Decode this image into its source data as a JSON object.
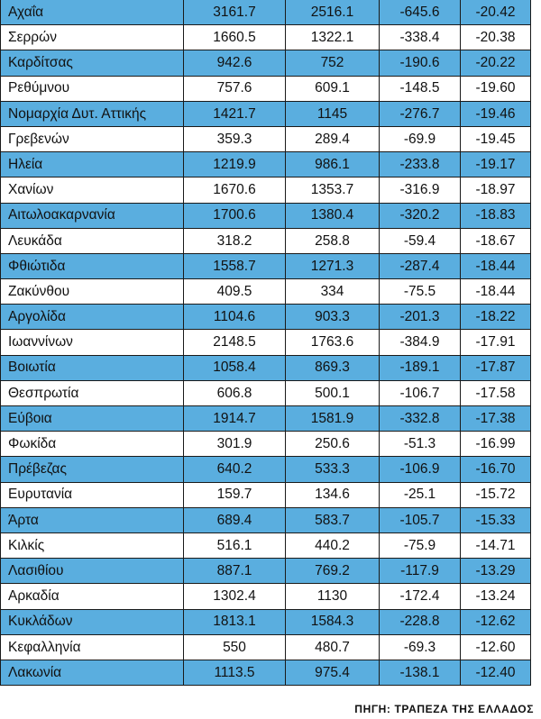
{
  "rows": [
    [
      "Αχαΐα",
      "3161.7",
      "2516.1",
      "-645.6",
      "-20.42"
    ],
    [
      "Σερρών",
      "1660.5",
      "1322.1",
      "-338.4",
      "-20.38"
    ],
    [
      "Καρδίτσας",
      "942.6",
      "752",
      "-190.6",
      "-20.22"
    ],
    [
      "Ρεθύμνου",
      "757.6",
      "609.1",
      "-148.5",
      "-19.60"
    ],
    [
      "Νομαρχία Δυτ. Αττικής",
      "1421.7",
      "1145",
      "-276.7",
      "-19.46"
    ],
    [
      "Γρεβενών",
      "359.3",
      "289.4",
      "-69.9",
      "-19.45"
    ],
    [
      "Ηλεία",
      "1219.9",
      "986.1",
      "-233.8",
      "-19.17"
    ],
    [
      "Χανίων",
      "1670.6",
      "1353.7",
      "-316.9",
      "-18.97"
    ],
    [
      "Αιτωλοακαρνανία",
      "1700.6",
      "1380.4",
      "-320.2",
      "-18.83"
    ],
    [
      "Λευκάδα",
      "318.2",
      "258.8",
      "-59.4",
      "-18.67"
    ],
    [
      "Φθιώτιδα",
      "1558.7",
      "1271.3",
      "-287.4",
      "-18.44"
    ],
    [
      "Ζακύνθου",
      "409.5",
      "334",
      "-75.5",
      "-18.44"
    ],
    [
      "Αργολίδα",
      "1104.6",
      "903.3",
      "-201.3",
      "-18.22"
    ],
    [
      "Ιωαννίνων",
      "2148.5",
      "1763.6",
      "-384.9",
      "-17.91"
    ],
    [
      "Βοιωτία",
      "1058.4",
      "869.3",
      "-189.1",
      "-17.87"
    ],
    [
      "Θεσπρωτία",
      "606.8",
      "500.1",
      "-106.7",
      "-17.58"
    ],
    [
      "Εύβοια",
      "1914.7",
      "1581.9",
      "-332.8",
      "-17.38"
    ],
    [
      "Φωκίδα",
      "301.9",
      "250.6",
      "-51.3",
      "-16.99"
    ],
    [
      "Πρέβεζας",
      "640.2",
      "533.3",
      "-106.9",
      "-16.70"
    ],
    [
      "Ευρυτανία",
      "159.7",
      "134.6",
      "-25.1",
      "-15.72"
    ],
    [
      "Άρτα",
      "689.4",
      "583.7",
      "-105.7",
      "-15.33"
    ],
    [
      "Κιλκίς",
      "516.1",
      "440.2",
      "-75.9",
      "-14.71"
    ],
    [
      "Λασιθίου",
      "887.1",
      "769.2",
      "-117.9",
      "-13.29"
    ],
    [
      "Αρκαδία",
      "1302.4",
      "1130",
      "-172.4",
      "-13.24"
    ],
    [
      "Κυκλάδων",
      "1813.1",
      "1584.3",
      "-228.8",
      "-12.62"
    ],
    [
      "Κεφαλληνία",
      "550",
      "480.7",
      "-69.3",
      "-12.60"
    ],
    [
      "Λακωνία",
      "1113.5",
      "975.4",
      "-138.1",
      "-12.40"
    ]
  ],
  "colors": {
    "shaded_row": "#5aaedf",
    "plain_row": "#ffffff",
    "border": "#1a1a1a"
  },
  "source": "ΠΗΓΗ: ΤΡΑΠΕΖΑ ΤΗΣ ΕΛΛΑΔΟΣ"
}
